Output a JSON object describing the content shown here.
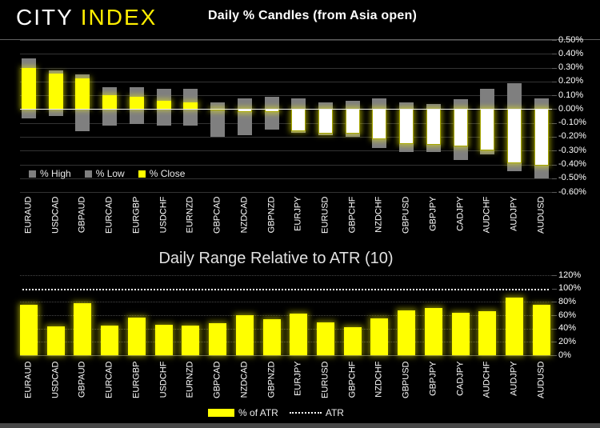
{
  "header": {
    "logo_city": "CITY",
    "logo_index": "INDEX"
  },
  "colors": {
    "background": "#000000",
    "accent_yellow": "#ffff00",
    "bar_gray": "#7f7f7f",
    "neg_close_fill": "#ffffff"
  },
  "chart_data": [
    {
      "type": "bar",
      "title": "Daily % Candles (from Asia open)",
      "categories": [
        "EURAUD",
        "USDCAD",
        "GBPAUD",
        "EURCAD",
        "EURGBP",
        "USDCHF",
        "EURNZD",
        "GBPCAD",
        "NZDCAD",
        "GBPNZD",
        "EURJPY",
        "EURUSD",
        "GBPCHF",
        "NZDCHF",
        "GBPUSD",
        "GBPJPY",
        "CADJPY",
        "AUDCHF",
        "AUDJPY",
        "AUDUSD"
      ],
      "series": [
        {
          "name": "% High",
          "color": "#7f7f7f",
          "values": [
            0.37,
            0.28,
            0.25,
            0.16,
            0.16,
            0.15,
            0.15,
            0.05,
            0.08,
            0.09,
            0.08,
            0.05,
            0.06,
            0.08,
            0.05,
            0.04,
            0.07,
            0.15,
            0.19,
            0.08
          ]
        },
        {
          "name": "% Low",
          "color": "#7f7f7f",
          "values": [
            -0.07,
            -0.05,
            -0.16,
            -0.12,
            -0.11,
            -0.12,
            -0.12,
            -0.2,
            -0.19,
            -0.15,
            -0.17,
            -0.19,
            -0.2,
            -0.28,
            -0.31,
            -0.31,
            -0.37,
            -0.33,
            -0.45,
            -0.5
          ]
        },
        {
          "name": "% Close",
          "color": "#ffff00",
          "invert_if_negative": true,
          "values": [
            0.3,
            0.26,
            0.22,
            0.1,
            0.09,
            0.06,
            0.05,
            -0.01,
            -0.02,
            -0.02,
            -0.16,
            -0.18,
            -0.18,
            -0.22,
            -0.25,
            -0.26,
            -0.27,
            -0.3,
            -0.39,
            -0.41
          ]
        }
      ],
      "ylim": [
        -0.6,
        0.5
      ],
      "grid": true,
      "legend_position": "inside-bottom-left",
      "y_ticks": [
        {
          "label": "0.50%",
          "value": 0.5
        },
        {
          "label": "0.40%",
          "value": 0.4
        },
        {
          "label": "0.30%",
          "value": 0.3
        },
        {
          "label": "0.20%",
          "value": 0.2
        },
        {
          "label": "0.10%",
          "value": 0.1
        },
        {
          "label": "0.00%",
          "value": 0.0,
          "zero": true
        },
        {
          "label": "-0.10%",
          "value": -0.1
        },
        {
          "label": "-0.20%",
          "value": -0.2
        },
        {
          "label": "-0.30%",
          "value": -0.3
        },
        {
          "label": "-0.40%",
          "value": -0.4
        },
        {
          "label": "-0.50%",
          "value": -0.5
        },
        {
          "label": "-0.60%",
          "value": -0.6
        }
      ]
    },
    {
      "type": "bar",
      "title": "Daily Range Relative to ATR (10)",
      "categories": [
        "EURAUD",
        "USDCAD",
        "GBPAUD",
        "EURCAD",
        "EURGBP",
        "USDCHF",
        "EURNZD",
        "GBPCAD",
        "NZDCAD",
        "GBPNZD",
        "EURJPY",
        "EURUSD",
        "GBPCHF",
        "NZDCHF",
        "GBPUSD",
        "GBPJPY",
        "CADJPY",
        "AUDCHF",
        "AUDJPY",
        "AUDUSD"
      ],
      "series": [
        {
          "name": "% of ATR",
          "color": "#ffff00",
          "values": [
            76,
            43,
            78,
            45,
            56,
            46,
            44,
            48,
            60,
            54,
            63,
            49,
            42,
            55,
            67,
            71,
            64,
            66,
            86,
            76
          ]
        },
        {
          "name": "ATR",
          "style": "dotted-line",
          "color": "#ffffff",
          "value": 100
        }
      ],
      "ylim": [
        0,
        120
      ],
      "grid": true,
      "legend_position": "below",
      "y_ticks": [
        {
          "label": "120%",
          "value": 120
        },
        {
          "label": "100%",
          "value": 100,
          "atr": true
        },
        {
          "label": "80%",
          "value": 80
        },
        {
          "label": "60%",
          "value": 60
        },
        {
          "label": "40%",
          "value": 40
        },
        {
          "label": "20%",
          "value": 20
        },
        {
          "label": "0%",
          "value": 0,
          "base": true
        }
      ]
    }
  ]
}
